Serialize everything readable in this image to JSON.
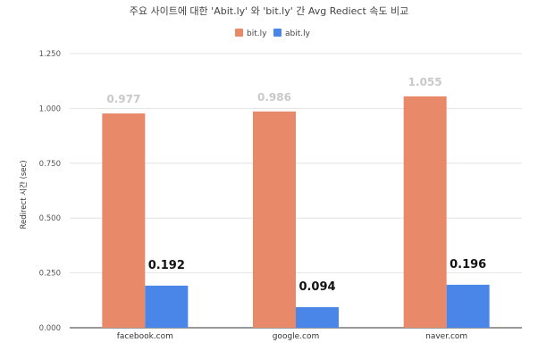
{
  "chart_data": {
    "type": "bar",
    "title": "주요 사이트에 대한 'Abit.ly' 와 'bit.ly' 간 Avg Rediect 속도 비교",
    "xlabel": "",
    "ylabel": "Redirect 시간 (sec)",
    "categories": [
      "facebook.com",
      "google.com",
      "naver.com"
    ],
    "series": [
      {
        "name": "bit.ly",
        "values": [
          0.977,
          0.986,
          1.055
        ],
        "labels": [
          "0.977",
          "0.986",
          "1.055"
        ],
        "color": "#E8896A"
      },
      {
        "name": "abit.ly",
        "values": [
          0.192,
          0.094,
          0.196
        ],
        "labels": [
          "0.192",
          "0.094",
          "0.196"
        ],
        "color": "#4A86E8"
      }
    ],
    "ylim": [
      0,
      1.25
    ],
    "yticks": [
      "0.000",
      "0.250",
      "0.500",
      "0.750",
      "1.000",
      "1.250"
    ],
    "grid": true,
    "legend_position": "top-center"
  }
}
